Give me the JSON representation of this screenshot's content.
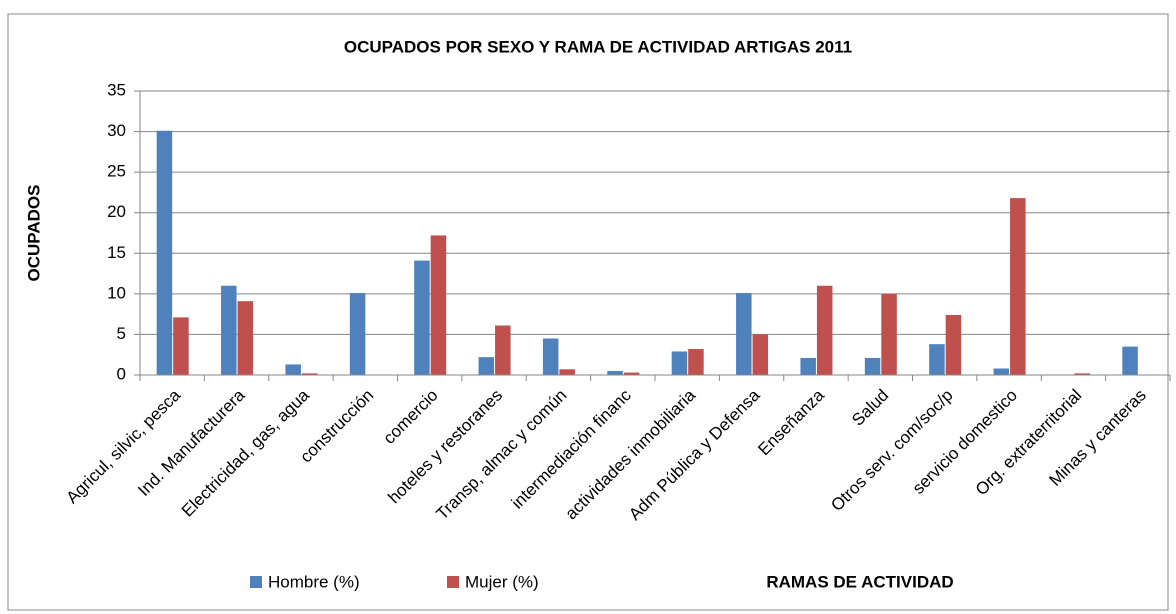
{
  "chart_data": {
    "type": "bar",
    "title": "OCUPADOS POR SEXO Y RAMA DE ACTIVIDAD ARTIGAS 2011",
    "ylabel": "OCUPADOS",
    "xlabel": "RAMAS DE ACTIVIDAD",
    "categories": [
      "Agricul, silvic, pesca",
      "Ind. Manufacturera",
      "Electricidad, gas, agua",
      "construcción",
      "comercio",
      "hoteles y restoranes",
      "Transp, almac y común",
      "intermediación financ",
      "actividades inmobiliaria",
      "Adm Pública y Defensa",
      "Enseñanza",
      "Salud",
      "Otros serv. com/soc/p",
      "servicio domestico",
      "Org. extraterritorial",
      "Minas y canteras"
    ],
    "series": [
      {
        "name": "Hombre (%)",
        "color": "#4f81bd",
        "values": [
          30.1,
          11,
          1.3,
          10.1,
          14.1,
          2.2,
          4.5,
          0.5,
          2.9,
          10.1,
          2.1,
          2.1,
          3.8,
          0.8,
          0,
          3.5
        ]
      },
      {
        "name": "Mujer (%)",
        "color": "#c0504d",
        "values": [
          7.1,
          9.1,
          0.2,
          0,
          17.2,
          6.1,
          0.7,
          0.3,
          3.2,
          5.0,
          11.0,
          10.0,
          7.4,
          21.8,
          0.2,
          0
        ]
      }
    ],
    "ylim": [
      0,
      35
    ],
    "yticks": [
      0,
      5,
      10,
      15,
      20,
      25,
      30,
      35
    ],
    "grid": true,
    "legend": "bottom"
  }
}
